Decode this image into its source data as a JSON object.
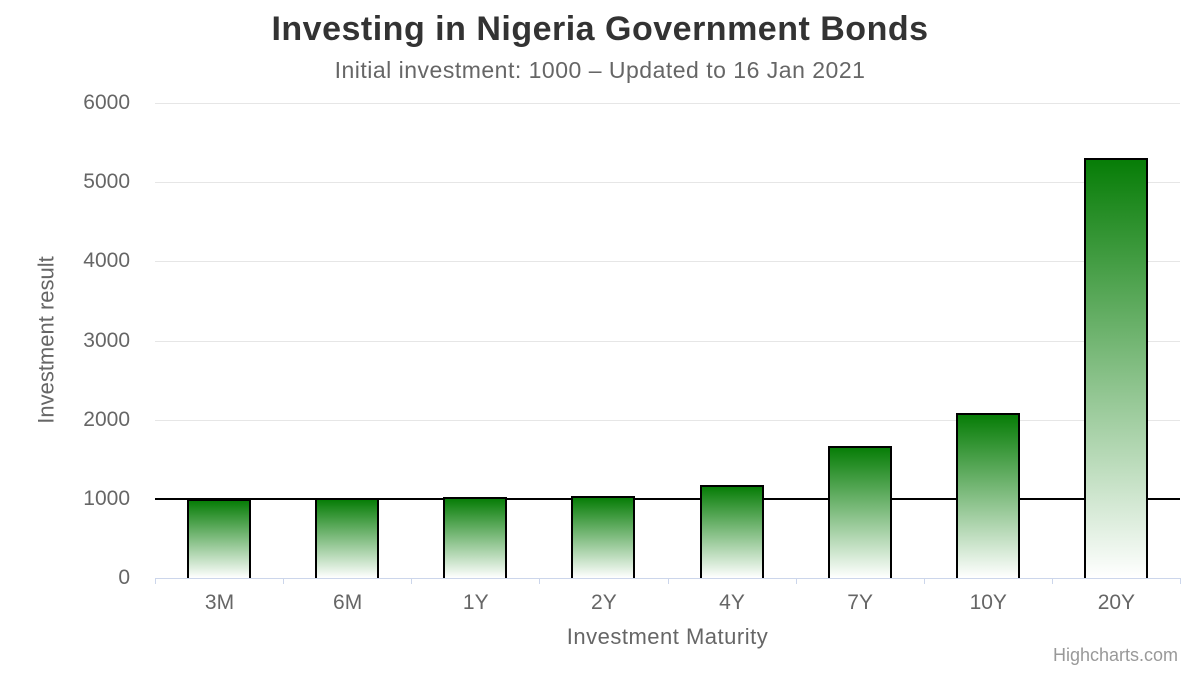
{
  "chart_data": {
    "type": "bar",
    "title": "Investing in Nigeria Government Bonds",
    "subtitle": "Initial investment: 1000 – Updated to 16 Jan 2021",
    "xlabel": "Investment Maturity",
    "ylabel": "Investment result",
    "credit": "Highcharts.com",
    "categories": [
      "3M",
      "6M",
      "1Y",
      "2Y",
      "4Y",
      "7Y",
      "10Y",
      "20Y"
    ],
    "values": [
      1000,
      1010,
      1020,
      1040,
      1180,
      1670,
      2090,
      5300
    ],
    "ylim": [
      0,
      6000
    ],
    "yticks": [
      0,
      1000,
      2000,
      3000,
      4000,
      5000,
      6000
    ],
    "grid": true,
    "legend": "none",
    "plotline_y": 1000,
    "colors": {
      "bar_top": "#077d07",
      "bar_bottom": "#ffffff",
      "bar_border": "#000000",
      "gridline": "#e6e6e6",
      "axis_line": "#ccd6eb",
      "plotline": "#000000",
      "title_text": "#333333",
      "subtitle_text": "#666666",
      "label_text": "#666666",
      "credit_text": "#999999"
    }
  }
}
